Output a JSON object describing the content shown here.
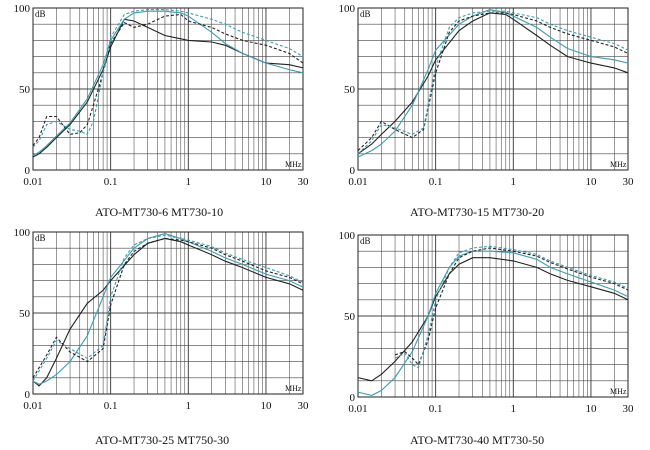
{
  "chart_data": [
    {
      "type": "line",
      "caption": "ATO-MT730-6  MT730-10",
      "xscale": "log",
      "xlim": [
        0.01,
        30
      ],
      "ylim": [
        0,
        100
      ],
      "xticks": [
        "0.01",
        "0.1",
        "1",
        "10",
        "30"
      ],
      "yticks": [
        "0",
        "50",
        "100"
      ],
      "ylabel": "dB",
      "xlabel": "MHz",
      "grid": true,
      "colors": {
        "black": "#222222",
        "teal": "#3a9eb0"
      },
      "series": [
        {
          "color": "black",
          "dash": "solid",
          "x": [
            0.01,
            0.012,
            0.015,
            0.02,
            0.03,
            0.05,
            0.08,
            0.1,
            0.15,
            0.2,
            0.3,
            0.5,
            0.8,
            1,
            2,
            3,
            5,
            10,
            20,
            30
          ],
          "y": [
            8,
            10,
            14,
            20,
            28,
            42,
            62,
            76,
            93,
            92,
            88,
            83,
            81,
            80,
            79,
            77,
            72,
            66,
            65,
            63
          ]
        },
        {
          "color": "teal",
          "dash": "solid",
          "x": [
            0.01,
            0.012,
            0.015,
            0.02,
            0.03,
            0.05,
            0.08,
            0.1,
            0.15,
            0.2,
            0.3,
            0.5,
            0.8,
            1,
            2,
            3,
            5,
            10,
            20,
            30
          ],
          "y": [
            9,
            11,
            15,
            21,
            29,
            44,
            65,
            80,
            93,
            97,
            98,
            98,
            97,
            95,
            85,
            78,
            72,
            66,
            62,
            60
          ]
        },
        {
          "color": "black",
          "dash": "dashed",
          "x": [
            0.01,
            0.012,
            0.015,
            0.02,
            0.03,
            0.04,
            0.05,
            0.06,
            0.08,
            0.1,
            0.15,
            0.2,
            0.3,
            0.5,
            0.8,
            1,
            2,
            3,
            5,
            10,
            20,
            30
          ],
          "y": [
            15,
            20,
            33,
            33,
            22,
            23,
            28,
            40,
            60,
            78,
            91,
            88,
            90,
            95,
            96,
            92,
            88,
            84,
            80,
            77,
            72,
            66
          ]
        },
        {
          "color": "teal",
          "dash": "dashed",
          "x": [
            0.01,
            0.012,
            0.015,
            0.02,
            0.03,
            0.04,
            0.05,
            0.06,
            0.08,
            0.1,
            0.15,
            0.2,
            0.3,
            0.5,
            0.8,
            1,
            2,
            3,
            5,
            10,
            20,
            30
          ],
          "y": [
            14,
            18,
            28,
            30,
            25,
            24,
            22,
            30,
            60,
            82,
            96,
            98,
            99,
            99,
            98,
            97,
            93,
            90,
            85,
            80,
            75,
            70
          ]
        }
      ]
    },
    {
      "type": "line",
      "caption": "ATO-MT730-15  MT730-20",
      "xscale": "log",
      "xlim": [
        0.01,
        30
      ],
      "ylim": [
        0,
        100
      ],
      "xticks": [
        "0.01",
        "0.1",
        "1",
        "10",
        "30"
      ],
      "yticks": [
        "0",
        "50",
        "100"
      ],
      "ylabel": "dB",
      "xlabel": "MHz",
      "grid": true,
      "colors": {
        "black": "#222222",
        "teal": "#3a9eb0"
      },
      "series": [
        {
          "color": "black",
          "dash": "solid",
          "x": [
            0.01,
            0.015,
            0.02,
            0.03,
            0.05,
            0.08,
            0.1,
            0.2,
            0.3,
            0.5,
            0.8,
            1,
            2,
            3,
            5,
            10,
            20,
            30
          ],
          "y": [
            10,
            16,
            22,
            30,
            42,
            58,
            68,
            86,
            92,
            97,
            96,
            93,
            83,
            77,
            70,
            66,
            63,
            60
          ]
        },
        {
          "color": "teal",
          "dash": "solid",
          "x": [
            0.01,
            0.015,
            0.02,
            0.03,
            0.05,
            0.08,
            0.1,
            0.2,
            0.3,
            0.5,
            0.8,
            1,
            2,
            3,
            5,
            10,
            20,
            30
          ],
          "y": [
            8,
            12,
            16,
            24,
            40,
            62,
            74,
            90,
            95,
            99,
            97,
            95,
            88,
            82,
            75,
            70,
            68,
            66
          ]
        },
        {
          "color": "black",
          "dash": "dashed",
          "x": [
            0.01,
            0.015,
            0.02,
            0.03,
            0.05,
            0.07,
            0.08,
            0.1,
            0.15,
            0.2,
            0.3,
            0.5,
            0.8,
            1,
            2,
            3,
            5,
            10,
            20,
            30
          ],
          "y": [
            12,
            20,
            30,
            25,
            20,
            25,
            38,
            60,
            85,
            92,
            95,
            97,
            97,
            96,
            92,
            88,
            84,
            80,
            76,
            72
          ]
        },
        {
          "color": "teal",
          "dash": "dashed",
          "x": [
            0.01,
            0.015,
            0.02,
            0.03,
            0.05,
            0.07,
            0.08,
            0.1,
            0.15,
            0.2,
            0.3,
            0.5,
            0.8,
            1,
            2,
            3,
            5,
            10,
            20,
            30
          ],
          "y": [
            10,
            18,
            28,
            26,
            22,
            26,
            40,
            64,
            88,
            94,
            97,
            98,
            98,
            97,
            94,
            90,
            86,
            82,
            78,
            74
          ]
        }
      ]
    },
    {
      "type": "line",
      "caption": "ATO-MT730-25  MT750-30",
      "xscale": "log",
      "xlim": [
        0.01,
        30
      ],
      "ylim": [
        0,
        100
      ],
      "xticks": [
        "0.01",
        "0.1",
        "1",
        "10",
        "30"
      ],
      "yticks": [
        "0",
        "50",
        "100"
      ],
      "ylabel": "dB",
      "xlabel": "MHz",
      "grid": true,
      "colors": {
        "black": "#222222",
        "teal": "#3a9eb0"
      },
      "series": [
        {
          "color": "black",
          "dash": "solid",
          "x": [
            0.01,
            0.012,
            0.015,
            0.02,
            0.03,
            0.05,
            0.08,
            0.1,
            0.2,
            0.3,
            0.5,
            0.8,
            1,
            2,
            3,
            5,
            10,
            20,
            30
          ],
          "y": [
            8,
            5,
            10,
            22,
            40,
            56,
            64,
            70,
            86,
            93,
            96,
            94,
            92,
            86,
            82,
            78,
            72,
            68,
            64
          ]
        },
        {
          "color": "teal",
          "dash": "solid",
          "x": [
            0.01,
            0.012,
            0.015,
            0.02,
            0.03,
            0.05,
            0.08,
            0.1,
            0.2,
            0.3,
            0.5,
            0.8,
            1,
            2,
            3,
            5,
            10,
            20,
            30
          ],
          "y": [
            8,
            6,
            8,
            12,
            20,
            36,
            60,
            72,
            90,
            96,
            99,
            96,
            94,
            88,
            84,
            80,
            74,
            70,
            66
          ]
        },
        {
          "color": "black",
          "dash": "dashed",
          "x": [
            0.01,
            0.015,
            0.02,
            0.03,
            0.05,
            0.08,
            0.1,
            0.15,
            0.2,
            0.3,
            0.5,
            0.8,
            1,
            2,
            3,
            5,
            10,
            20,
            30
          ],
          "y": [
            10,
            24,
            35,
            26,
            20,
            28,
            55,
            80,
            88,
            93,
            96,
            95,
            94,
            90,
            86,
            82,
            76,
            72,
            68
          ]
        },
        {
          "color": "teal",
          "dash": "dashed",
          "x": [
            0.01,
            0.015,
            0.02,
            0.03,
            0.05,
            0.08,
            0.1,
            0.15,
            0.2,
            0.3,
            0.5,
            0.8,
            1,
            2,
            3,
            5,
            10,
            20,
            30
          ],
          "y": [
            8,
            22,
            33,
            28,
            22,
            30,
            60,
            84,
            92,
            96,
            98,
            96,
            95,
            91,
            87,
            83,
            78,
            73,
            69
          ]
        }
      ]
    },
    {
      "type": "line",
      "caption": "ATO-MT730-40  MT730-50",
      "xscale": "log",
      "xlim": [
        0.01,
        30
      ],
      "ylim": [
        0,
        100
      ],
      "xticks": [
        "0.01",
        "0.1",
        "1",
        "10",
        "30"
      ],
      "yticks": [
        "0",
        "50",
        "100"
      ],
      "ylabel": "dB",
      "xlabel": "MHz",
      "grid": true,
      "colors": {
        "black": "#222222",
        "teal": "#3a9eb0"
      },
      "series": [
        {
          "color": "black",
          "dash": "solid",
          "x": [
            0.01,
            0.015,
            0.02,
            0.03,
            0.05,
            0.08,
            0.1,
            0.15,
            0.2,
            0.3,
            0.5,
            1,
            2,
            3,
            5,
            10,
            20,
            30
          ],
          "y": [
            12,
            10,
            14,
            22,
            34,
            50,
            62,
            76,
            82,
            86,
            86,
            84,
            80,
            76,
            72,
            68,
            64,
            60
          ]
        },
        {
          "color": "teal",
          "dash": "solid",
          "x": [
            0.01,
            0.015,
            0.02,
            0.03,
            0.05,
            0.08,
            0.1,
            0.15,
            0.2,
            0.3,
            0.5,
            1,
            2,
            3,
            5,
            10,
            20,
            30
          ],
          "y": [
            3,
            1,
            4,
            12,
            28,
            50,
            64,
            80,
            87,
            90,
            90,
            89,
            85,
            80,
            76,
            71,
            66,
            62
          ]
        },
        {
          "color": "black",
          "dash": "dashed",
          "x": [
            0.03,
            0.04,
            0.05,
            0.06,
            0.08,
            0.1,
            0.15,
            0.2,
            0.3,
            0.5,
            1,
            2,
            3,
            5,
            10,
            20,
            30
          ],
          "y": [
            26,
            28,
            24,
            20,
            35,
            55,
            76,
            86,
            90,
            92,
            90,
            87,
            83,
            79,
            74,
            70,
            66
          ]
        },
        {
          "color": "teal",
          "dash": "dashed",
          "x": [
            0.03,
            0.04,
            0.05,
            0.06,
            0.08,
            0.1,
            0.15,
            0.2,
            0.3,
            0.5,
            1,
            2,
            3,
            5,
            10,
            20,
            30
          ],
          "y": [
            24,
            27,
            20,
            18,
            38,
            60,
            80,
            89,
            92,
            93,
            91,
            88,
            84,
            80,
            75,
            71,
            67
          ]
        }
      ]
    }
  ]
}
